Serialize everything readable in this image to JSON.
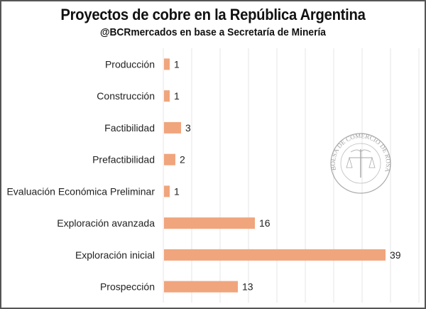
{
  "chart_data": {
    "type": "bar",
    "orientation": "horizontal",
    "title": "Proyectos de cobre en la República Argentina",
    "subtitle": "@BCRmercados en base a Secretaría de Minería",
    "categories": [
      "Producción",
      "Construcción",
      "Factibilidad",
      "Prefactibilidad",
      "Evaluación Económica Preliminar",
      "Exploración avanzada",
      "Exploración inicial",
      "Prospección"
    ],
    "values": [
      1,
      1,
      3,
      2,
      1,
      16,
      39,
      13
    ],
    "xlabel": "",
    "ylabel": "",
    "xlim": [
      0,
      45
    ],
    "grid_step": 5,
    "grid": true,
    "legend": "none",
    "data_labels": true,
    "bar_color": "#F0A57D",
    "watermark": "BOLSA DE COMERCIO DE ROSARIO"
  }
}
